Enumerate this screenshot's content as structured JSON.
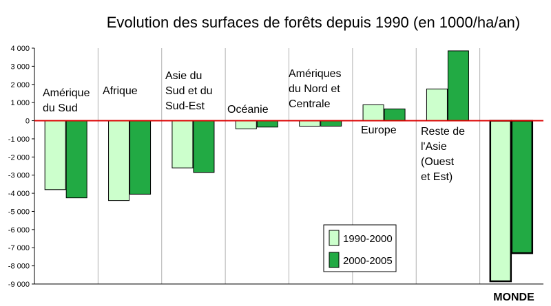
{
  "chart_data": {
    "type": "bar",
    "title": "Evolution des surfaces de forêts depuis 1990 (en 1000/ha/an)",
    "xlabel": "",
    "ylabel": "",
    "ylim": [
      -9000,
      4000
    ],
    "yticks": [
      "4 000",
      "3 000",
      "2 000",
      "1 000",
      "0",
      "-1 000",
      "-2 000",
      "-3 000",
      "-4 000",
      "-5 000",
      "-6 000",
      "-7 000",
      "-8 000",
      "-9 000"
    ],
    "categories": [
      [
        "Amérique",
        "du Sud"
      ],
      [
        "Afrique"
      ],
      [
        "Asie du",
        "Sud et du",
        "Sud-Est"
      ],
      [
        "Océanie"
      ],
      [
        "Amériques",
        "du Nord et",
        "Centrale"
      ],
      [
        "Europe"
      ],
      [
        "Reste de",
        "l'Asie",
        "(Ouest",
        "et Est)"
      ],
      [
        "MONDE"
      ]
    ],
    "series": [
      {
        "name": "1990-2000",
        "color": "#ccffcc",
        "values": [
          -3800,
          -4400,
          -2600,
          -450,
          -300,
          880,
          1750,
          -8850
        ]
      },
      {
        "name": "2000-2005",
        "color": "#22aa44",
        "values": [
          -4250,
          -4050,
          -2850,
          -350,
          -300,
          650,
          3850,
          -7300
        ]
      }
    ],
    "zero_line_color": "#dd0000",
    "grid": "vertical separators",
    "legend_position": "bottom-center"
  }
}
